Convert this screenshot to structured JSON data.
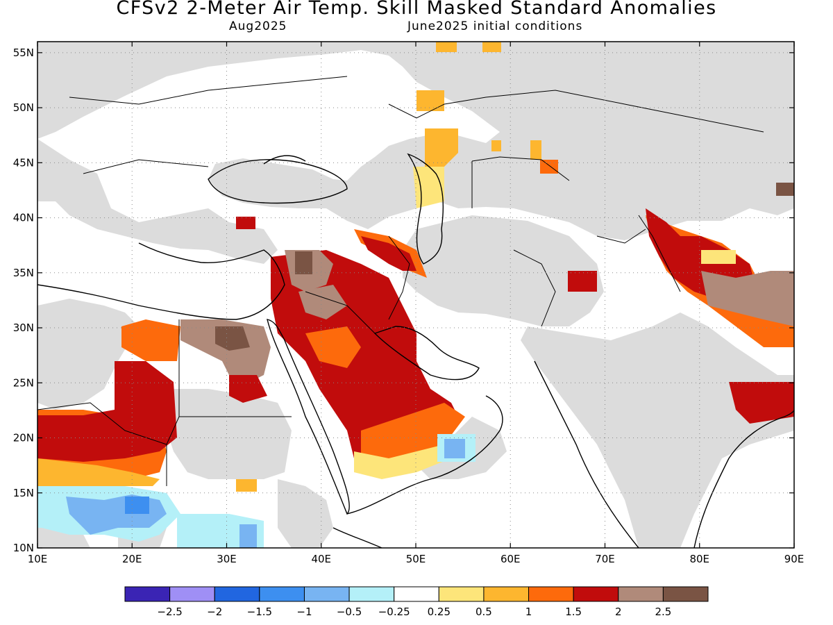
{
  "title": "CFSv2 2-Meter Air Temp. Skill Masked Standard Anomalies",
  "valid_month": "Aug2025",
  "initial_conditions": "June2025 initial conditions",
  "map": {
    "lon_range": [
      10,
      90
    ],
    "lat_range": [
      10,
      56
    ],
    "lat_labels": [
      "55N",
      "50N",
      "45N",
      "40N",
      "35N",
      "30N",
      "25N",
      "20N",
      "15N",
      "10N"
    ],
    "lon_labels": [
      "10E",
      "20E",
      "30E",
      "40E",
      "50E",
      "60E",
      "70E",
      "80E",
      "90E"
    ],
    "masked_color": "#dcdcdc"
  },
  "legend": {
    "bins": [
      {
        "color": "#3a24b4"
      },
      {
        "color": "#9f8ff5"
      },
      {
        "color": "#2166e0"
      },
      {
        "color": "#3d8ff0"
      },
      {
        "color": "#78b4f2"
      },
      {
        "color": "#b4f0f8"
      },
      {
        "color": "#ffffff"
      },
      {
        "color": "#fde57a"
      },
      {
        "color": "#fdb62f"
      },
      {
        "color": "#fd6a0c"
      },
      {
        "color": "#c10c0c"
      },
      {
        "color": "#b08a7a"
      },
      {
        "color": "#7a5444"
      }
    ],
    "labels": [
      "−2.5",
      "−2",
      "−1.5",
      "−1",
      "−0.5",
      "−0.25",
      "0.25",
      "0.5",
      "1",
      "1.5",
      "2",
      "2.5"
    ]
  }
}
